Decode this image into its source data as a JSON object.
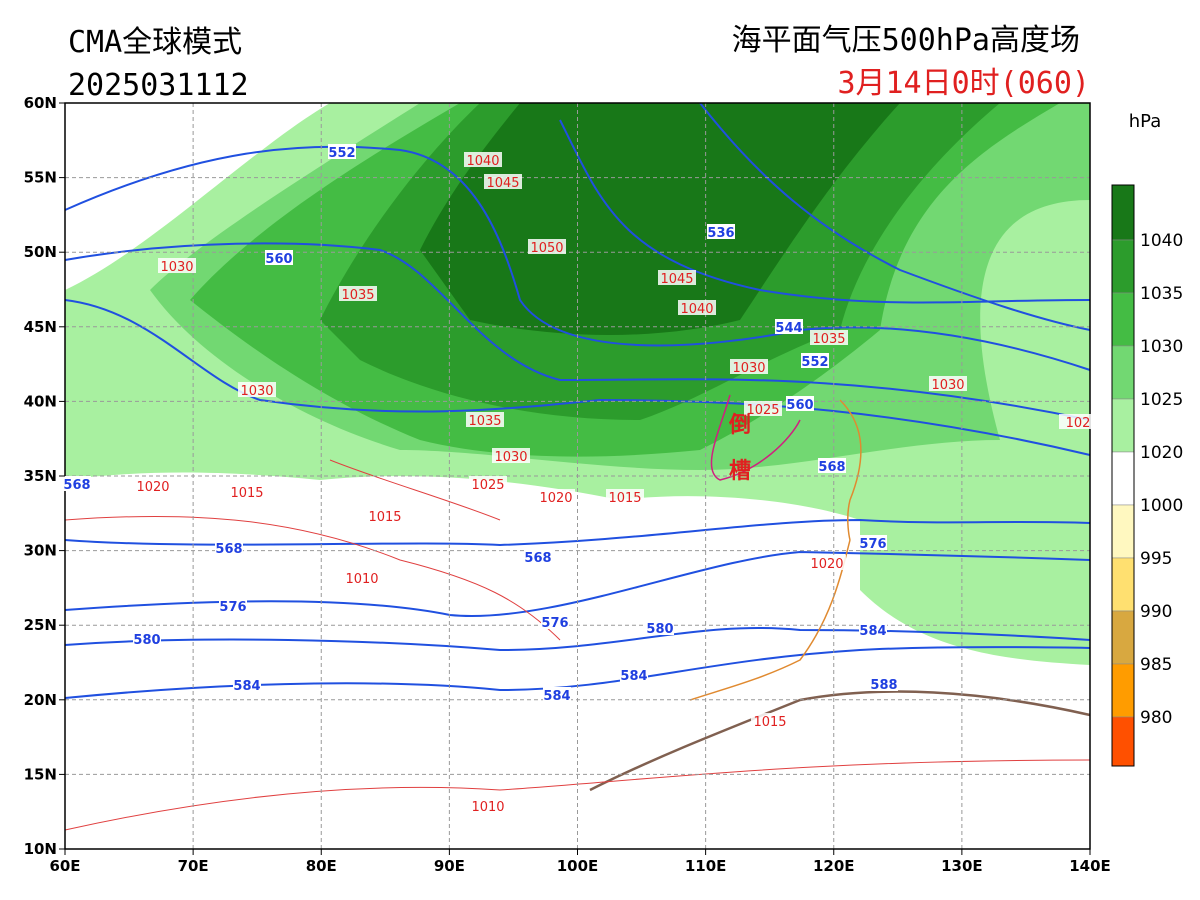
{
  "header": {
    "model": "CMA全球模式",
    "run": "2025031112",
    "title": "海平面气压500hPa高度场",
    "valid": "3月14日0时(060)"
  },
  "map": {
    "lat_labels": [
      "60N",
      "55N",
      "50N",
      "45N",
      "40N",
      "35N",
      "30N",
      "25N",
      "20N",
      "15N",
      "10N"
    ],
    "lon_labels": [
      "60E",
      "70E",
      "80E",
      "90E",
      "100E",
      "110E",
      "120E",
      "130E",
      "140E"
    ],
    "annotations": [
      "倒",
      "槽"
    ]
  },
  "colorbar": {
    "unit": "hPa",
    "labels": [
      1040,
      1035,
      1030,
      1025,
      1020,
      1000,
      995,
      990,
      985,
      980
    ],
    "colors": [
      "#187818",
      "#2c9c2c",
      "#44bc44",
      "#72d872",
      "#a8f0a0",
      "#ffffff",
      "#fff8c0",
      "#ffe070",
      "#d8a840",
      "#ff9c00",
      "#ff5000"
    ]
  },
  "pressure_labels": [
    1040,
    1045,
    1050,
    1045,
    1040,
    1035,
    1030,
    1030,
    1025,
    1035,
    1030,
    1030,
    1035,
    1030,
    1025,
    1020,
    1015,
    1020,
    1015,
    1015,
    1010,
    1020,
    1015,
    1010,
    102
  ],
  "height_labels": [
    552,
    560,
    536,
    544,
    552,
    560,
    568,
    568,
    568,
    568,
    576,
    576,
    576,
    580,
    580,
    584,
    584,
    584,
    584,
    588
  ]
}
